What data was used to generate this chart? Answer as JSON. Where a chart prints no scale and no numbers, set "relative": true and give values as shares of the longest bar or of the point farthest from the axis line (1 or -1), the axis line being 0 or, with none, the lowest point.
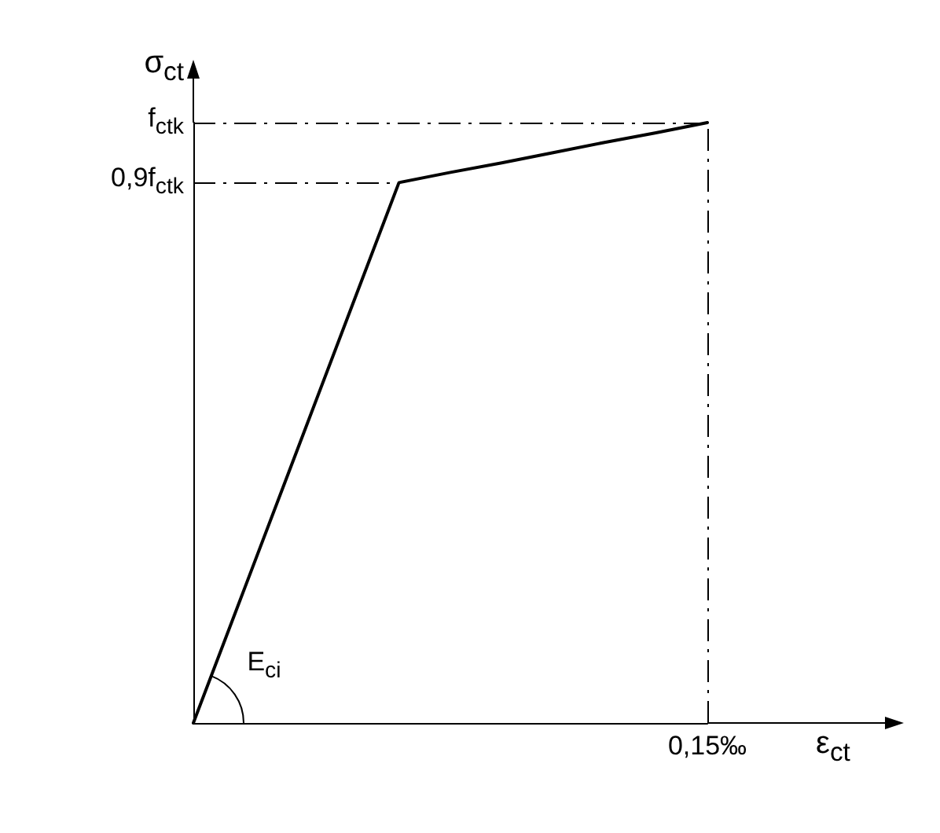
{
  "chart_data": {
    "type": "line",
    "relative": true,
    "xlabel": "ε$_{ct}$",
    "ylabel": "σ$_{ct}$",
    "categories": [
      null,
      null,
      null,
      null,
      null,
      null,
      null,
      null,
      null,
      null,
      null
    ],
    "series": [
      {
        "color": "#000000",
        "values": [
          0,
          0.225,
          0.45,
          0.675,
          0.9,
          0.917,
          0.933,
          0.95,
          0.967,
          0.983,
          1
        ]
      }
    ],
    "ref_lines": [
      {
        "axis": "y",
        "value": 1,
        "label": "f$_{ctk}$",
        "color": "#000000",
        "line_style": "dashdot"
      },
      {
        "axis": "y",
        "value": 0.9,
        "label": "0,9f$_{ctk}$",
        "color": "#000000",
        "line_style": "dashdot"
      }
    ],
    "annotations": [
      "E$_{ci}$",
      "0,15‰"
    ],
    "grid": false,
    "marker": "none",
    "line_style": "solid"
  }
}
